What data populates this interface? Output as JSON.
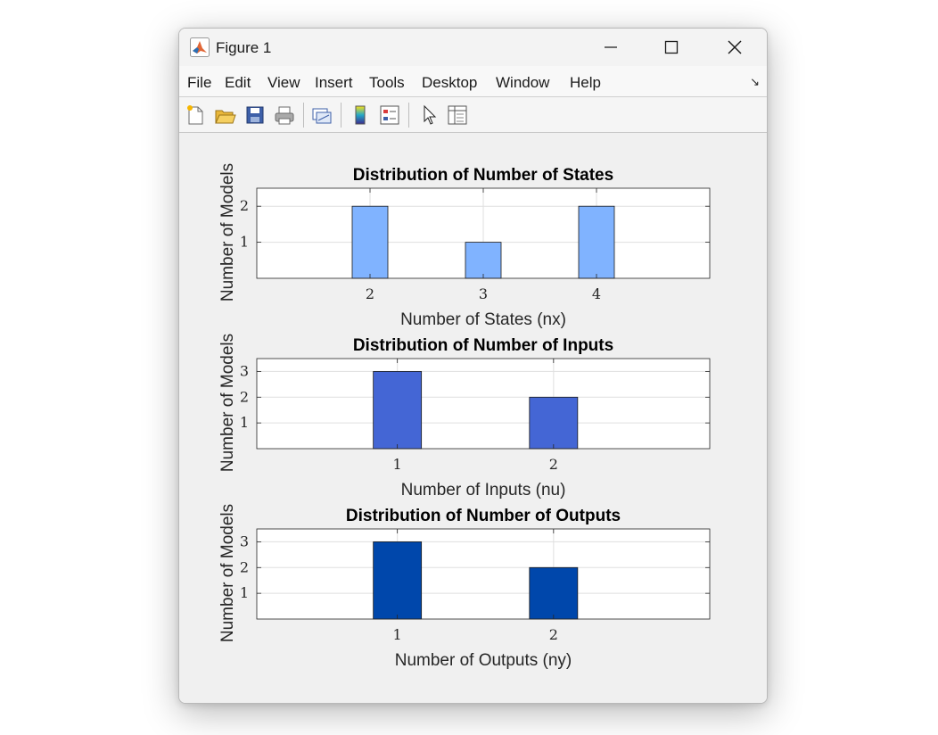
{
  "window": {
    "title": "Figure 1",
    "controls": {
      "minimize": "minimize",
      "maximize": "maximize",
      "close": "close"
    }
  },
  "menu": [
    "File",
    "Edit",
    "View",
    "Insert",
    "Tools",
    "Desktop",
    "Window",
    "Help"
  ],
  "toolbar": {
    "buttons": [
      "new-figure-icon",
      "open-file-icon",
      "save-icon",
      "print-icon",
      "link-plot-icon",
      "insert-colorbar-icon",
      "insert-legend-icon",
      "pointer-icon",
      "property-inspector-icon"
    ]
  },
  "colors": {
    "states_bar": "#80b3ff",
    "inputs_bar": "#4466d5",
    "outputs_bar": "#0047ab",
    "grid": "#dfdfdf",
    "axes": "#262626"
  },
  "chart_data": [
    {
      "type": "bar",
      "title": "Distribution of Number of States",
      "xlabel": "Number of States (nx)",
      "ylabel": "Number of Models",
      "categories": [
        2,
        3,
        4
      ],
      "values": [
        2,
        1,
        2
      ],
      "xlim": [
        1,
        5
      ],
      "ylim": [
        0,
        2.5
      ],
      "yticks": [
        1,
        2
      ],
      "grid": true
    },
    {
      "type": "bar",
      "title": "Distribution of Number of Inputs",
      "xlabel": "Number of Inputs (nu)",
      "ylabel": "Number of Models",
      "categories": [
        1,
        2
      ],
      "values": [
        3,
        2
      ],
      "xlim": [
        0.1,
        3
      ],
      "ylim": [
        0,
        3.5
      ],
      "yticks": [
        1,
        2,
        3
      ],
      "grid": true
    },
    {
      "type": "bar",
      "title": "Distribution of Number of Outputs",
      "xlabel": "Number of Outputs (ny)",
      "ylabel": "Number of Models",
      "categories": [
        1,
        2
      ],
      "values": [
        3,
        2
      ],
      "xlim": [
        0.1,
        3
      ],
      "ylim": [
        0,
        3.5
      ],
      "yticks": [
        1,
        2,
        3
      ],
      "grid": true
    }
  ]
}
